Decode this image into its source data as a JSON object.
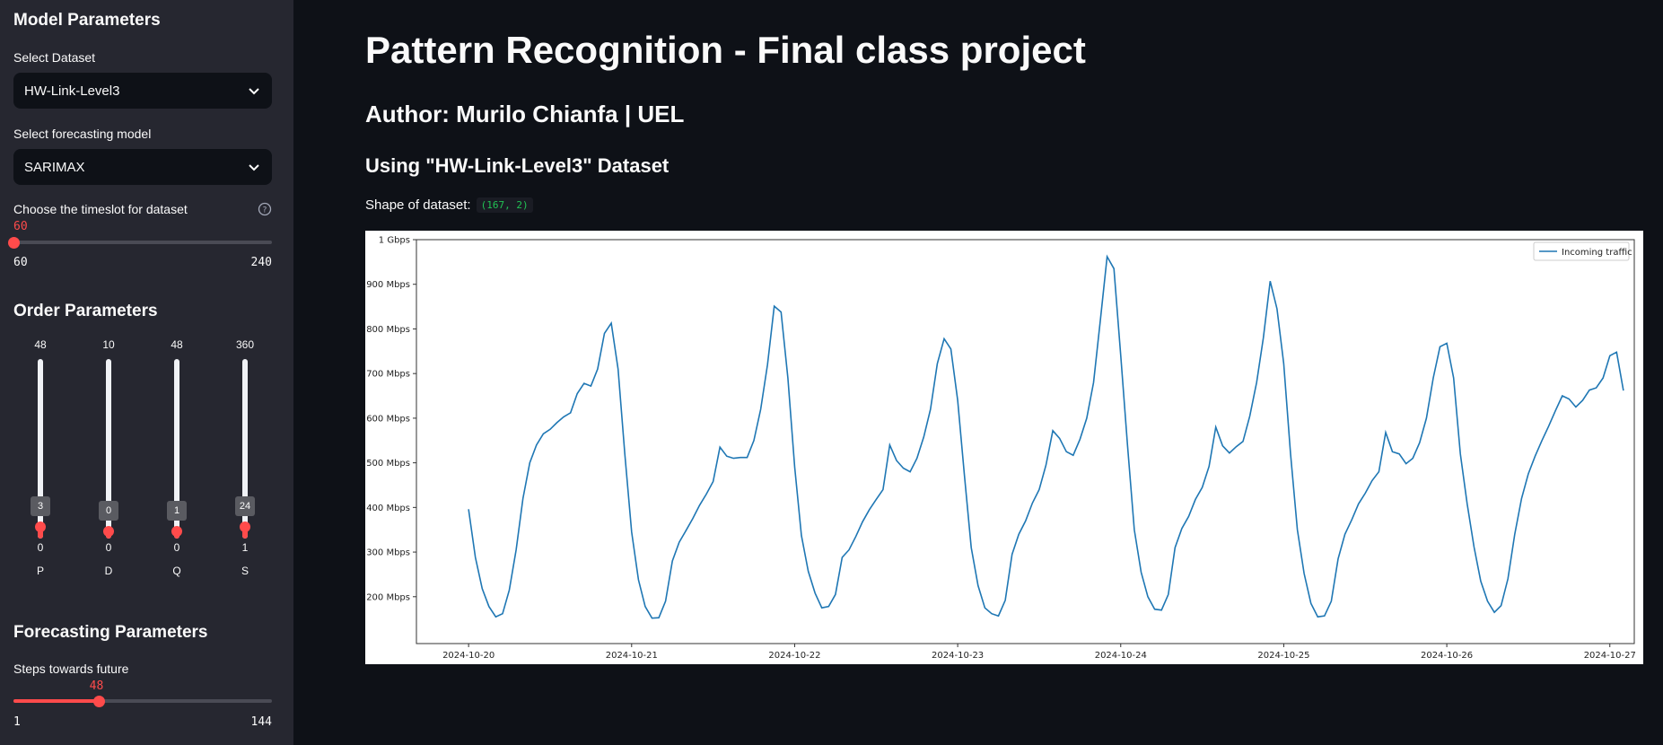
{
  "sidebar": {
    "model_heading": "Model Parameters",
    "dataset_label": "Select Dataset",
    "dataset_value": "HW-Link-Level3",
    "model_label": "Select forecasting model",
    "model_value": "SARIMAX",
    "timeslot": {
      "label": "Choose the timeslot for dataset",
      "value": "60",
      "min": "60",
      "max": "240",
      "fraction": 0.0
    },
    "order_heading": "Order Parameters",
    "order_sliders": [
      {
        "name": "P",
        "max": "48",
        "min": "0",
        "value": "3",
        "value_num": 3,
        "max_num": 48
      },
      {
        "name": "D",
        "max": "10",
        "min": "0",
        "value": "0",
        "value_num": 0,
        "max_num": 10
      },
      {
        "name": "Q",
        "max": "48",
        "min": "0",
        "value": "1",
        "value_num": 1,
        "max_num": 48
      },
      {
        "name": "S",
        "max": "360",
        "min": "1",
        "value": "24",
        "value_num": 24,
        "max_num": 360
      }
    ],
    "forecast_heading": "Forecasting Parameters",
    "steps": {
      "label": "Steps towards future",
      "value": "48",
      "min": "1",
      "max": "144",
      "fraction": 0.3287
    }
  },
  "main": {
    "title": "Pattern Recognition - Final class project",
    "author": "Author: Murilo Chianfa | UEL",
    "dataset_heading": "Using \"HW-Link-Level3\" Dataset",
    "shape_label": "Shape of dataset:",
    "shape_value": "(167, 2)"
  },
  "colors": {
    "accent": "#ff4b4b",
    "line": "#1f77b4",
    "code": "#21c354"
  },
  "chart_data": {
    "type": "line",
    "x_labels": [
      "2024-10-20",
      "2024-10-21",
      "2024-10-22",
      "2024-10-23",
      "2024-10-24",
      "2024-10-25",
      "2024-10-26",
      "2024-10-27"
    ],
    "y_ticks": [
      200,
      300,
      400,
      500,
      600,
      700,
      800,
      900,
      1000
    ],
    "y_tick_labels": [
      "200 Mbps",
      "300 Mbps",
      "400 Mbps",
      "500 Mbps",
      "600 Mbps",
      "700 Mbps",
      "800 Mbps",
      "900 Mbps",
      "1 Gbps"
    ],
    "ylim": [
      95,
      1000
    ],
    "xlim_days": [
      -0.32,
      7.15
    ],
    "legend_position": "top-right",
    "series": [
      {
        "name": "Incoming traffic",
        "x_start": "2024-10-20 00:00",
        "x_step_hours": 1,
        "values": [
          396,
          288,
          218,
          178,
          155,
          162,
          215,
          305,
          420,
          500,
          540,
          565,
          575,
          590,
          603,
          612,
          655,
          678,
          672,
          710,
          790,
          813,
          710,
          520,
          345,
          238,
          178,
          152,
          153,
          190,
          280,
          322,
          348,
          375,
          405,
          430,
          458,
          535,
          515,
          510,
          512,
          512,
          550,
          620,
          720,
          851,
          838,
          690,
          490,
          337,
          257,
          208,
          175,
          178,
          205,
          288,
          305,
          335,
          368,
          395,
          418,
          440,
          540,
          505,
          488,
          480,
          510,
          558,
          620,
          722,
          778,
          755,
          640,
          470,
          310,
          225,
          175,
          162,
          157,
          192,
          295,
          340,
          370,
          410,
          440,
          495,
          572,
          555,
          525,
          517,
          553,
          600,
          680,
          820,
          962,
          935,
          740,
          540,
          350,
          255,
          200,
          172,
          170,
          205,
          310,
          353,
          380,
          418,
          445,
          492,
          580,
          538,
          522,
          536,
          548,
          605,
          680,
          780,
          907,
          845,
          722,
          520,
          350,
          252,
          185,
          155,
          157,
          190,
          285,
          340,
          372,
          408,
          432,
          460,
          480,
          568,
          525,
          520,
          498,
          510,
          545,
          600,
          690,
          760,
          768,
          690,
          520,
          408,
          312,
          235,
          190,
          165,
          180,
          240,
          340,
          420,
          475,
          515,
          550,
          582,
          617,
          650,
          643,
          625,
          640,
          663,
          668,
          690,
          740,
          748,
          662
        ]
      }
    ]
  }
}
